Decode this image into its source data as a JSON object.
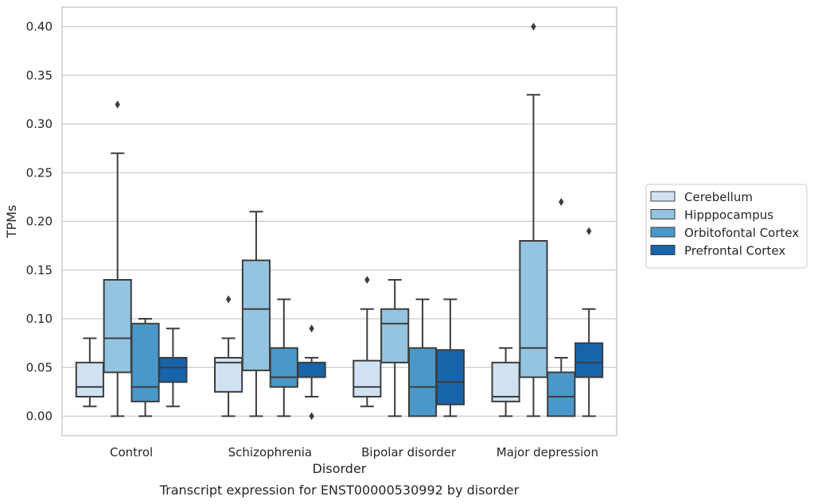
{
  "chart_data": {
    "type": "box",
    "caption": "Transcript expression for ENST00000530992 by disorder",
    "xlabel": "Disorder",
    "ylabel": "TPMs",
    "ylim": [
      -0.02,
      0.42
    ],
    "yticks": [
      0.0,
      0.05,
      0.1,
      0.15,
      0.2,
      0.25,
      0.3,
      0.35,
      0.4
    ],
    "ytick_labels": [
      "0.00",
      "0.05",
      "0.10",
      "0.15",
      "0.20",
      "0.25",
      "0.30",
      "0.35",
      "0.40"
    ],
    "categories": [
      "Control",
      "Schizophrenia",
      "Bipolar disorder",
      "Major depression"
    ],
    "grid": true,
    "legend_placement": "right",
    "series": [
      {
        "name": "Cerebellum",
        "color": "#d0e1f2",
        "boxes": [
          {
            "whisker_low": 0.01,
            "q1": 0.02,
            "median": 0.03,
            "q3": 0.055,
            "whisker_high": 0.08,
            "outliers": []
          },
          {
            "whisker_low": 0.0,
            "q1": 0.025,
            "median": 0.055,
            "q3": 0.06,
            "whisker_high": 0.08,
            "outliers": [
              0.12
            ]
          },
          {
            "whisker_low": 0.01,
            "q1": 0.02,
            "median": 0.03,
            "q3": 0.057,
            "whisker_high": 0.11,
            "outliers": [
              0.14
            ]
          },
          {
            "whisker_low": 0.0,
            "q1": 0.015,
            "median": 0.02,
            "q3": 0.055,
            "whisker_high": 0.07,
            "outliers": []
          }
        ]
      },
      {
        "name": "Hipppocampus",
        "color": "#94c4df",
        "boxes": [
          {
            "whisker_low": 0.0,
            "q1": 0.045,
            "median": 0.08,
            "q3": 0.14,
            "whisker_high": 0.27,
            "outliers": [
              0.32
            ]
          },
          {
            "whisker_low": 0.0,
            "q1": 0.047,
            "median": 0.11,
            "q3": 0.16,
            "whisker_high": 0.21,
            "outliers": []
          },
          {
            "whisker_low": 0.0,
            "q1": 0.055,
            "median": 0.095,
            "q3": 0.11,
            "whisker_high": 0.14,
            "outliers": []
          },
          {
            "whisker_low": 0.0,
            "q1": 0.04,
            "median": 0.07,
            "q3": 0.18,
            "whisker_high": 0.33,
            "outliers": [
              0.4
            ]
          }
        ]
      },
      {
        "name": "Orbitofontal Cortex",
        "color": "#4a98c9",
        "boxes": [
          {
            "whisker_low": 0.0,
            "q1": 0.015,
            "median": 0.03,
            "q3": 0.095,
            "whisker_high": 0.1,
            "outliers": []
          },
          {
            "whisker_low": 0.0,
            "q1": 0.03,
            "median": 0.04,
            "q3": 0.07,
            "whisker_high": 0.12,
            "outliers": []
          },
          {
            "whisker_low": 0.0,
            "q1": 0.0,
            "median": 0.03,
            "q3": 0.07,
            "whisker_high": 0.12,
            "outliers": []
          },
          {
            "whisker_low": 0.0,
            "q1": 0.0,
            "median": 0.02,
            "q3": 0.045,
            "whisker_high": 0.06,
            "outliers": [
              0.22
            ]
          }
        ]
      },
      {
        "name": "Prefrontal Cortex",
        "color": "#1764ab",
        "boxes": [
          {
            "whisker_low": 0.01,
            "q1": 0.035,
            "median": 0.05,
            "q3": 0.06,
            "whisker_high": 0.09,
            "outliers": []
          },
          {
            "whisker_low": 0.02,
            "q1": 0.04,
            "median": 0.04,
            "q3": 0.055,
            "whisker_high": 0.06,
            "outliers": [
              0.09,
              0.0
            ]
          },
          {
            "whisker_low": 0.0,
            "q1": 0.012,
            "median": 0.035,
            "q3": 0.068,
            "whisker_high": 0.12,
            "outliers": []
          },
          {
            "whisker_low": 0.0,
            "q1": 0.04,
            "median": 0.055,
            "q3": 0.075,
            "whisker_high": 0.11,
            "outliers": [
              0.19
            ]
          }
        ]
      }
    ]
  }
}
